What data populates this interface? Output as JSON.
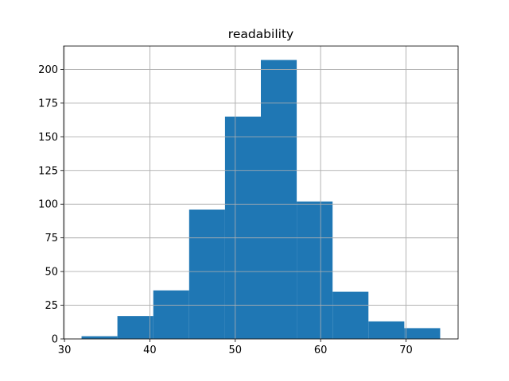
{
  "chart_data": {
    "type": "histogram",
    "title": "readability",
    "bins": [
      32.0,
      36.2,
      40.4,
      44.6,
      48.8,
      53.0,
      57.2,
      61.4,
      65.6,
      69.8,
      74.0
    ],
    "counts": [
      2,
      17,
      36,
      96,
      165,
      207,
      102,
      35,
      13,
      8
    ],
    "color": "#1f77b4",
    "xlim": [
      29.9,
      76.1
    ],
    "xticks": [
      30,
      40,
      50,
      60,
      70
    ],
    "ylim": [
      0,
      217.35
    ],
    "yticks": [
      0,
      25,
      50,
      75,
      100,
      125,
      150,
      175,
      200
    ],
    "grid": true
  }
}
